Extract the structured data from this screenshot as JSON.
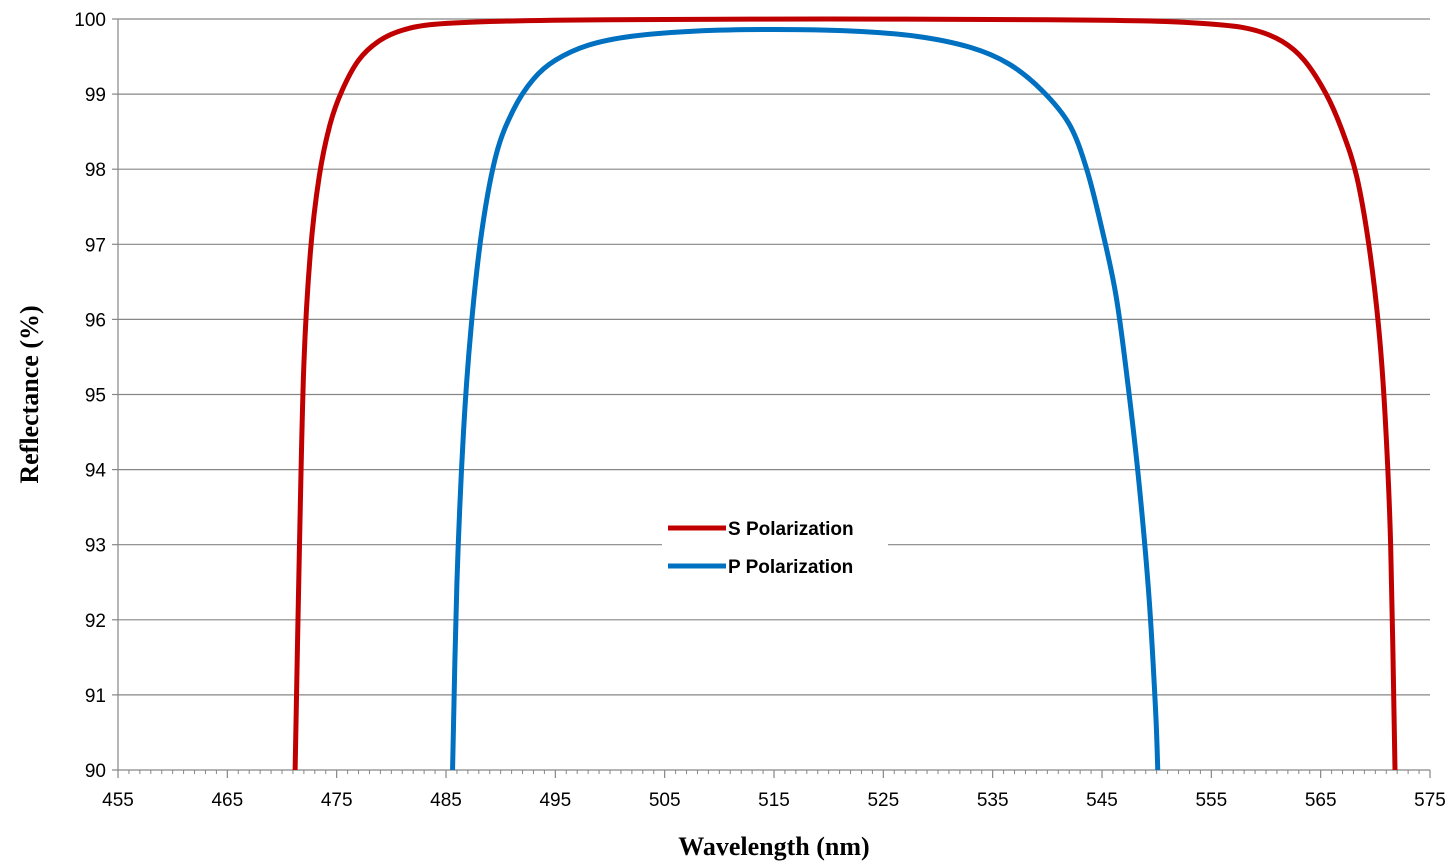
{
  "chart_data": {
    "type": "line",
    "xlabel": "Wavelength (nm)",
    "ylabel": "Reflectance (%)",
    "xlim": [
      455,
      575
    ],
    "ylim": [
      90,
      100
    ],
    "x_ticks": [
      455,
      465,
      475,
      485,
      495,
      505,
      515,
      525,
      535,
      545,
      555,
      565,
      575
    ],
    "y_ticks": [
      90,
      91,
      92,
      93,
      94,
      95,
      96,
      97,
      98,
      99,
      100
    ],
    "grid": "horizontal",
    "legend_position": "center",
    "series": [
      {
        "name": "S Polarization",
        "color": "#C00000",
        "points": [
          [
            471.2,
            90
          ],
          [
            471.6,
            93
          ],
          [
            472.0,
            95.4
          ],
          [
            472.6,
            96.9
          ],
          [
            473.4,
            97.9
          ],
          [
            474.4,
            98.6
          ],
          [
            475.5,
            99.05
          ],
          [
            477.0,
            99.45
          ],
          [
            478.8,
            99.7
          ],
          [
            481.0,
            99.85
          ],
          [
            484.0,
            99.93
          ],
          [
            490.0,
            99.97
          ],
          [
            500.0,
            99.99
          ],
          [
            520.0,
            100.0
          ],
          [
            540.0,
            99.99
          ],
          [
            550.0,
            99.97
          ],
          [
            556.0,
            99.92
          ],
          [
            559.0,
            99.85
          ],
          [
            561.5,
            99.7
          ],
          [
            563.5,
            99.45
          ],
          [
            565.5,
            99.0
          ],
          [
            567.0,
            98.5
          ],
          [
            568.3,
            97.9
          ],
          [
            569.4,
            97.0
          ],
          [
            570.3,
            95.9
          ],
          [
            570.9,
            94.7
          ],
          [
            571.4,
            93.0
          ],
          [
            571.8,
            90
          ]
        ]
      },
      {
        "name": "P Polarization",
        "color": "#0070C0",
        "points": [
          [
            485.6,
            90
          ],
          [
            486.0,
            92.5
          ],
          [
            486.6,
            94.5
          ],
          [
            487.3,
            95.9
          ],
          [
            488.3,
            97.2
          ],
          [
            489.6,
            98.2
          ],
          [
            491.2,
            98.8
          ],
          [
            493.0,
            99.2
          ],
          [
            495.0,
            99.45
          ],
          [
            498.0,
            99.65
          ],
          [
            502.0,
            99.77
          ],
          [
            508.0,
            99.84
          ],
          [
            515.0,
            99.86
          ],
          [
            522.0,
            99.84
          ],
          [
            528.0,
            99.77
          ],
          [
            533.0,
            99.62
          ],
          [
            536.5,
            99.4
          ],
          [
            539.5,
            99.05
          ],
          [
            542.0,
            98.6
          ],
          [
            543.6,
            98.0
          ],
          [
            545.0,
            97.2
          ],
          [
            546.3,
            96.3
          ],
          [
            547.4,
            95.1
          ],
          [
            548.4,
            93.8
          ],
          [
            549.3,
            92.3
          ],
          [
            549.9,
            90.8
          ],
          [
            550.1,
            90
          ]
        ]
      }
    ]
  }
}
